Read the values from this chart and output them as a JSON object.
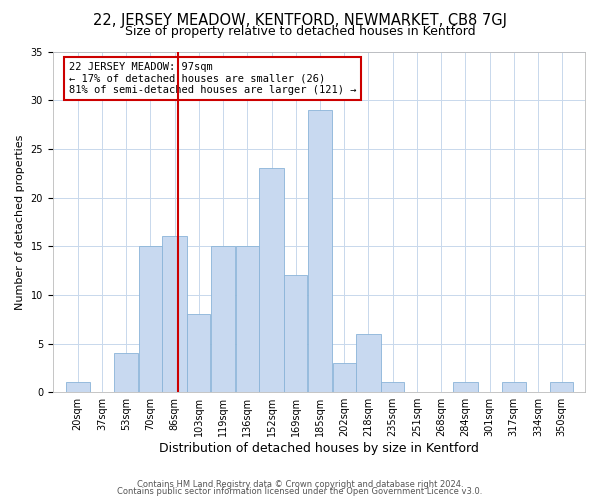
{
  "title": "22, JERSEY MEADOW, KENTFORD, NEWMARKET, CB8 7GJ",
  "subtitle": "Size of property relative to detached houses in Kentford",
  "xlabel": "Distribution of detached houses by size in Kentford",
  "ylabel": "Number of detached properties",
  "bins": [
    "20sqm",
    "37sqm",
    "53sqm",
    "70sqm",
    "86sqm",
    "103sqm",
    "119sqm",
    "136sqm",
    "152sqm",
    "169sqm",
    "185sqm",
    "202sqm",
    "218sqm",
    "235sqm",
    "251sqm",
    "268sqm",
    "284sqm",
    "301sqm",
    "317sqm",
    "334sqm",
    "350sqm"
  ],
  "values": [
    1,
    0,
    4,
    15,
    16,
    8,
    15,
    15,
    23,
    12,
    29,
    3,
    6,
    1,
    0,
    0,
    1,
    0,
    1,
    0,
    1
  ],
  "bar_color": "#c8d9f0",
  "bar_edgecolor": "#8ab4d8",
  "bin_edges": [
    20,
    37,
    53,
    70,
    86,
    103,
    119,
    136,
    152,
    169,
    185,
    202,
    218,
    235,
    251,
    268,
    284,
    301,
    317,
    334,
    350
  ],
  "vline_color": "#cc0000",
  "ylim": [
    0,
    35
  ],
  "yticks": [
    0,
    5,
    10,
    15,
    20,
    25,
    30,
    35
  ],
  "annotation_text": "22 JERSEY MEADOW: 97sqm\n← 17% of detached houses are smaller (26)\n81% of semi-detached houses are larger (121) →",
  "annotation_box_color": "#ffffff",
  "annotation_box_edgecolor": "#cc0000",
  "footer1": "Contains HM Land Registry data © Crown copyright and database right 2024.",
  "footer2": "Contains public sector information licensed under the Open Government Licence v3.0.",
  "background_color": "#ffffff",
  "grid_color": "#c8d8ec",
  "title_fontsize": 10.5,
  "subtitle_fontsize": 9,
  "xlabel_fontsize": 9,
  "ylabel_fontsize": 8,
  "tick_fontsize": 7,
  "annot_fontsize": 7.5,
  "footer_fontsize": 6
}
